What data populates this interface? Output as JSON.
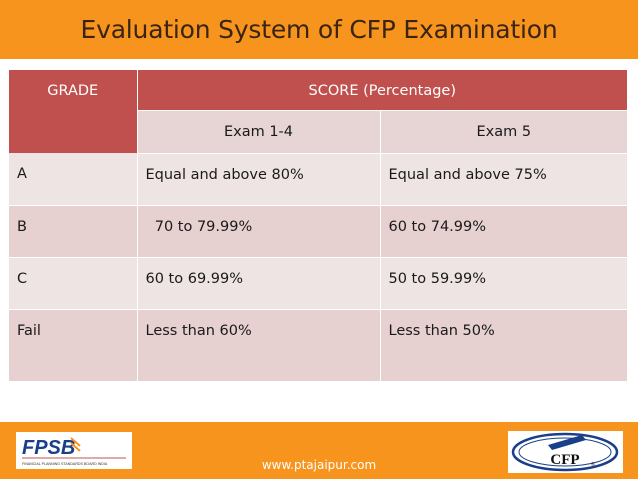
{
  "title": "Evaluation System of CFP Examination",
  "table": {
    "grade_header": "GRADE",
    "score_header": "SCORE   (Percentage)",
    "sub_headers": [
      "Exam 1-4",
      "Exam 5"
    ],
    "rows": [
      {
        "grade": "A",
        "exam14": "Equal and above 80%",
        "exam5": "Equal and above 75%"
      },
      {
        "grade": "B",
        "exam14": "  70 to 79.99%",
        "exam5": "60 to 74.99%"
      },
      {
        "grade": "C",
        "exam14": "60 to 69.99%",
        "exam5": "50 to 59.99%"
      },
      {
        "grade": "Fail",
        "exam14": "Less than 60%",
        "exam5": "Less than 50%"
      }
    ]
  },
  "footer": {
    "url": "www.ptajaipur.com",
    "left_logo": {
      "main": "FPSB",
      "sub": "FINANCIAL PLANNING STANDARDS BOARD INDIA"
    },
    "right_logo": {
      "main": "CFP",
      "mark": "®"
    }
  },
  "colors": {
    "accent": "#f7941d",
    "header": "#c0504d",
    "row_light": "#efe4e4",
    "row_dark": "#e6d0d0"
  }
}
